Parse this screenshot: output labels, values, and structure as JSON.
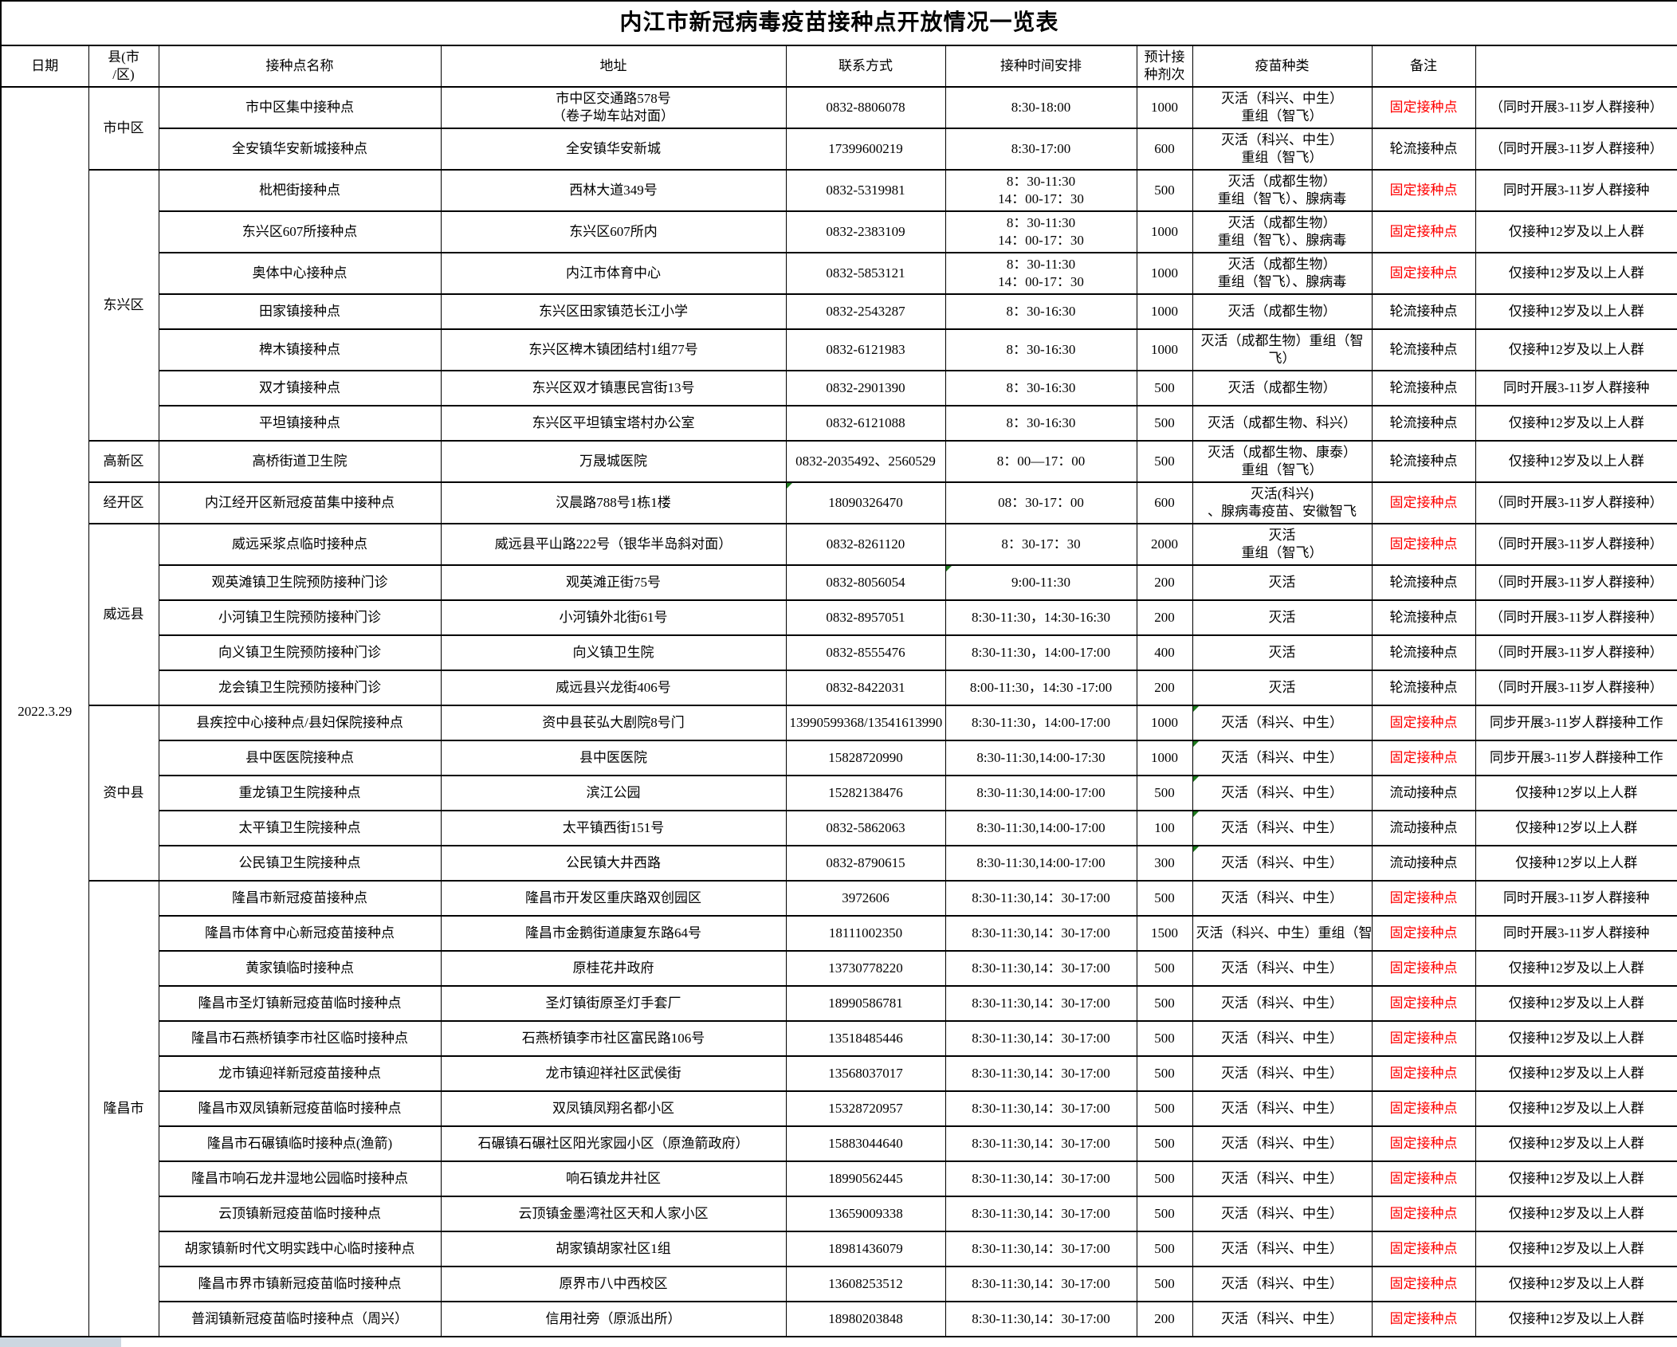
{
  "title": "内江市新冠病毒疫苗接种点开放情况一览表",
  "date": "2022.3.29",
  "columns": [
    "日期",
    "县(市\n/区)",
    "接种点名称",
    "地址",
    "联系方式",
    "接种时间安排",
    "预计接\n种剂次",
    "疫苗种类",
    "备注",
    ""
  ],
  "colors": {
    "fixed_point_red": "#ff0000",
    "error_indicator_green": "#1e7a1e",
    "border_black": "#000000",
    "edge_strip_grey": "#ccd7e1"
  },
  "groups": [
    {
      "district": "市中区",
      "rows": [
        {
          "name": "市中区集中接种点",
          "address": "市中区交通路578号\n（卷子坳车站对面）",
          "contact": "0832-8806078",
          "time": "8:30-18:00",
          "doses": "1000",
          "vaccine": "灭活（科兴、中生）\n重组（智飞）",
          "remark": "固定接种点",
          "remark_red": true,
          "note": "（同时开展3-11岁人群接种）"
        },
        {
          "name": "全安镇华安新城接种点",
          "address": "全安镇华安新城",
          "contact": "17399600219",
          "time": "8:30-17:00",
          "doses": "600",
          "vaccine": "灭活（科兴、中生）\n重组（智飞）",
          "remark": "轮流接种点",
          "remark_red": false,
          "note": "（同时开展3-11岁人群接种）"
        }
      ]
    },
    {
      "district": "东兴区",
      "rows": [
        {
          "name": "枇杷街接种点",
          "address": "西林大道349号",
          "contact": "0832-5319981",
          "time": "8：30-11:30\n14：00-17：30",
          "doses": "500",
          "vaccine": "灭活（成都生物）\n重组（智飞）、腺病毒",
          "remark": "固定接种点",
          "remark_red": true,
          "note": "同时开展3-11岁人群接种"
        },
        {
          "name": "东兴区607所接种点",
          "address": "东兴区607所内",
          "contact": "0832-2383109",
          "time": "8：30-11:30\n14：00-17：30",
          "doses": "1000",
          "vaccine": "灭活（成都生物）\n重组（智飞）、腺病毒",
          "remark": "固定接种点",
          "remark_red": true,
          "note": "仅接种12岁及以上人群"
        },
        {
          "name": "奥体中心接种点",
          "address": "内江市体育中心",
          "contact": "0832-5853121",
          "time": "8：30-11:30\n14：00-17：30",
          "doses": "1000",
          "vaccine": "灭活（成都生物）\n重组（智飞）、腺病毒",
          "remark": "固定接种点",
          "remark_red": true,
          "note": "仅接种12岁及以上人群"
        },
        {
          "name": "田家镇接种点",
          "address": "东兴区田家镇范长江小学",
          "contact": "0832-2543287",
          "time": "8：30-16:30",
          "doses": "1000",
          "vaccine": "灭活（成都生物）",
          "remark": "轮流接种点",
          "remark_red": false,
          "note": "仅接种12岁及以上人群"
        },
        {
          "name": "椑木镇接种点",
          "address": "东兴区椑木镇团结村1组77号",
          "contact": "0832-6121983",
          "time": "8：30-16:30",
          "doses": "1000",
          "vaccine": "灭活（成都生物）重组（智飞）",
          "remark": "轮流接种点",
          "remark_red": false,
          "note": "仅接种12岁及以上人群"
        },
        {
          "name": "双才镇接种点",
          "address": "东兴区双才镇惠民宫街13号",
          "contact": "0832-2901390",
          "time": "8：30-16:30",
          "doses": "500",
          "vaccine": "灭活（成都生物）",
          "remark": "轮流接种点",
          "remark_red": false,
          "note": "同时开展3-11岁人群接种"
        },
        {
          "name": "平坦镇接种点",
          "address": "东兴区平坦镇宝塔村办公室",
          "contact": "0832-6121088",
          "time": "8：30-16:30",
          "doses": "500",
          "vaccine": "灭活（成都生物、科兴）",
          "remark": "轮流接种点",
          "remark_red": false,
          "note": "仅接种12岁及以上人群"
        }
      ]
    },
    {
      "district": "高新区",
      "rows": [
        {
          "name": "高桥街道卫生院",
          "address": "万晟城医院",
          "contact": "0832-2035492、2560529",
          "time": "8：00—17：00",
          "doses": "500",
          "vaccine": "灭活（成都生物、康泰）\n重组（智飞）",
          "remark": "轮流接种点",
          "remark_red": false,
          "note": "仅接种12岁及以上人群"
        }
      ]
    },
    {
      "district": "经开区",
      "rows": [
        {
          "name": "内江经开区新冠疫苗集中接种点",
          "address": "汉晨路788号1栋1楼",
          "contact": "18090326470",
          "time": "08：30-17：00",
          "doses": "600",
          "vaccine": "灭活(科兴)\n、腺病毒疫苗、安徽智飞",
          "remark": "固定接种点",
          "remark_red": true,
          "note": "（同时开展3-11岁人群接种）",
          "gt": [
            "contact"
          ]
        }
      ]
    },
    {
      "district": "威远县",
      "rows": [
        {
          "name": "威远采浆点临时接种点",
          "address": "威远县平山路222号（银华半岛斜对面）",
          "contact": "0832-8261120",
          "time": "8：30-17：30",
          "doses": "2000",
          "vaccine": "灭活\n重组（智飞）",
          "remark": "固定接种点",
          "remark_red": true,
          "note": "（同时开展3-11岁人群接种）"
        },
        {
          "name": "观英滩镇卫生院预防接种门诊",
          "address": "观英滩正街75号",
          "contact": "0832-8056054",
          "time": "9:00-11:30",
          "doses": "200",
          "vaccine": "灭活",
          "remark": "轮流接种点",
          "remark_red": false,
          "note": "（同时开展3-11岁人群接种）",
          "gt": [
            "time"
          ]
        },
        {
          "name": "小河镇卫生院预防接种门诊",
          "address": "小河镇外北街61号",
          "contact": "0832-8957051",
          "time": "8:30-11:30，14:30-16:30",
          "doses": "200",
          "vaccine": "灭活",
          "remark": "轮流接种点",
          "remark_red": false,
          "note": "（同时开展3-11岁人群接种）"
        },
        {
          "name": "向义镇卫生院预防接种门诊",
          "address": "向义镇卫生院",
          "contact": "0832-8555476",
          "time": "8:30-11:30，14:00-17:00",
          "doses": "400",
          "vaccine": "灭活",
          "remark": "轮流接种点",
          "remark_red": false,
          "note": "（同时开展3-11岁人群接种）"
        },
        {
          "name": "龙会镇卫生院预防接种门诊",
          "address": "威远县兴龙街406号",
          "contact": "0832-8422031",
          "time": "8:00-11:30，14:30 -17:00",
          "doses": "200",
          "vaccine": "灭活",
          "remark": "轮流接种点",
          "remark_red": false,
          "note": "（同时开展3-11岁人群接种）"
        }
      ]
    },
    {
      "district": "资中县",
      "rows": [
        {
          "name": "县疾控中心接种点/县妇保院接种点",
          "address": "资中县苌弘大剧院8号门",
          "contact": "13990599368/13541613990",
          "time": "8:30-11:30，14:00-17:00",
          "doses": "1000",
          "vaccine": "灭活（科兴、中生）",
          "remark": "固定接种点",
          "remark_red": true,
          "note": "同步开展3-11岁人群接种工作",
          "gt": [
            "vaccine"
          ]
        },
        {
          "name": "县中医医院接种点",
          "address": "县中医医院",
          "contact": "15828720990",
          "time": "8:30-11:30,14:00-17:30",
          "doses": "1000",
          "vaccine": "灭活（科兴、中生）",
          "remark": "固定接种点",
          "remark_red": true,
          "note": "同步开展3-11岁人群接种工作",
          "gt": [
            "vaccine"
          ]
        },
        {
          "name": "重龙镇卫生院接种点",
          "address": "滨江公园",
          "contact": "15282138476",
          "time": "8:30-11:30,14:00-17:00",
          "doses": "500",
          "vaccine": "灭活（科兴、中生）",
          "remark": "流动接种点",
          "remark_red": false,
          "note": "仅接种12岁以上人群",
          "gt": [
            "vaccine"
          ]
        },
        {
          "name": "太平镇卫生院接种点",
          "address": "太平镇西街151号",
          "contact": "0832-5862063",
          "time": "8:30-11:30,14:00-17:00",
          "doses": "100",
          "vaccine": "灭活（科兴、中生）",
          "remark": "流动接种点",
          "remark_red": false,
          "note": "仅接种12岁以上人群",
          "gt": [
            "vaccine"
          ]
        },
        {
          "name": "公民镇卫生院接种点",
          "address": "公民镇大井西路",
          "contact": "0832-8790615",
          "time": "8:30-11:30,14:00-17:00",
          "doses": "300",
          "vaccine": "灭活（科兴、中生）",
          "remark": "流动接种点",
          "remark_red": false,
          "note": "仅接种12岁以上人群",
          "gt": [
            "vaccine"
          ]
        }
      ]
    },
    {
      "district": "隆昌市",
      "rows": [
        {
          "name": "隆昌市新冠疫苗接种点",
          "address": "隆昌市开发区重庆路双创园区",
          "contact": "3972606",
          "time": "8:30-11:30,14：30-17:00",
          "doses": "500",
          "vaccine": "灭活（科兴、中生）",
          "remark": "固定接种点",
          "remark_red": true,
          "note": "同时开展3-11岁人群接种"
        },
        {
          "name": "隆昌市体育中心新冠疫苗接种点",
          "address": "隆昌市金鹅街道康复东路64号",
          "contact": "18111002350",
          "time": "8:30-11:30,14：30-17:00",
          "doses": "1500",
          "vaccine": "灭活（科兴、中生）重组（智飞）",
          "vaccine_clip": true,
          "remark": "固定接种点",
          "remark_red": true,
          "note": "同时开展3-11岁人群接种"
        },
        {
          "name": "黄家镇临时接种点",
          "address": "原桂花井政府",
          "contact": "13730778220",
          "time": "8:30-11:30,14：30-17:00",
          "doses": "500",
          "vaccine": "灭活（科兴、中生）",
          "remark": "固定接种点",
          "remark_red": true,
          "note": "仅接种12岁及以上人群"
        },
        {
          "name": "隆昌市圣灯镇新冠疫苗临时接种点",
          "address": "圣灯镇街原圣灯手套厂",
          "contact": "18990586781",
          "time": "8:30-11:30,14：30-17:00",
          "doses": "500",
          "vaccine": "灭活（科兴、中生）",
          "remark": "固定接种点",
          "remark_red": true,
          "note": "仅接种12岁及以上人群"
        },
        {
          "name": "隆昌市石燕桥镇李市社区临时接种点",
          "address": "石燕桥镇李市社区富民路106号",
          "contact": "13518485446",
          "time": "8:30-11:30,14：30-17:00",
          "doses": "500",
          "vaccine": "灭活（科兴、中生）",
          "remark": "固定接种点",
          "remark_red": true,
          "note": "仅接种12岁及以上人群"
        },
        {
          "name": "龙市镇迎祥新冠疫苗接种点",
          "address": "龙市镇迎祥社区武侯街",
          "contact": "13568037017",
          "time": "8:30-11:30,14：30-17:00",
          "doses": "500",
          "vaccine": "灭活（科兴、中生）",
          "remark": "固定接种点",
          "remark_red": true,
          "note": "仅接种12岁及以上人群"
        },
        {
          "name": "隆昌市双凤镇新冠疫苗临时接种点",
          "address": "双凤镇凤翔名都小区",
          "contact": "15328720957",
          "time": "8:30-11:30,14：30-17:00",
          "doses": "500",
          "vaccine": "灭活（科兴、中生）",
          "remark": "固定接种点",
          "remark_red": true,
          "note": "仅接种12岁及以上人群"
        },
        {
          "name": "隆昌市石碾镇临时接种点(渔箭)",
          "address": "石碾镇石碾社区阳光家园小区（原渔箭政府）",
          "contact": "15883044640",
          "time": "8:30-11:30,14：30-17:00",
          "doses": "500",
          "vaccine": "灭活（科兴、中生）",
          "remark": "固定接种点",
          "remark_red": true,
          "note": "仅接种12岁及以上人群"
        },
        {
          "name": "隆昌市响石龙井湿地公园临时接种点",
          "address": "响石镇龙井社区",
          "contact": "18990562445",
          "time": "8:30-11:30,14：30-17:00",
          "doses": "500",
          "vaccine": "灭活（科兴、中生）",
          "remark": "固定接种点",
          "remark_red": true,
          "note": "仅接种12岁及以上人群"
        },
        {
          "name": "云顶镇新冠疫苗临时接种点",
          "address": "云顶镇金墨湾社区天和人家小区",
          "contact": "13659009338",
          "time": "8:30-11:30,14：30-17:00",
          "doses": "500",
          "vaccine": "灭活（科兴、中生）",
          "remark": "固定接种点",
          "remark_red": true,
          "note": "仅接种12岁及以上人群"
        },
        {
          "name": "胡家镇新时代文明实践中心临时接种点",
          "address": "胡家镇胡家社区1组",
          "contact": "18981436079",
          "time": "8:30-11:30,14：30-17:00",
          "doses": "500",
          "vaccine": "灭活（科兴、中生）",
          "remark": "固定接种点",
          "remark_red": true,
          "note": "仅接种12岁及以上人群"
        },
        {
          "name": "隆昌市界市镇新冠疫苗临时接种点",
          "address": "原界市八中西校区",
          "contact": "13608253512",
          "time": "8:30-11:30,14：30-17:00",
          "doses": "500",
          "vaccine": "灭活（科兴、中生）",
          "remark": "固定接种点",
          "remark_red": true,
          "note": "仅接种12岁及以上人群"
        },
        {
          "name": "普润镇新冠疫苗临时接种点（周兴）",
          "address": "信用社旁（原派出所）",
          "contact": "18980203848",
          "time": "8:30-11:30,14：30-17:00",
          "doses": "200",
          "vaccine": "灭活（科兴、中生）",
          "remark": "固定接种点",
          "remark_red": true,
          "note": "仅接种12岁及以上人群"
        }
      ]
    }
  ]
}
